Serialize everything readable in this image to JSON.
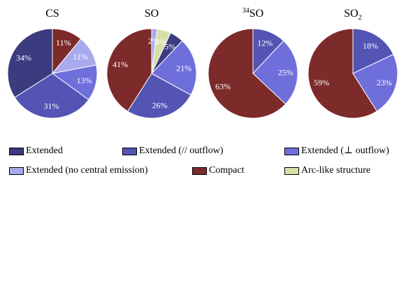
{
  "chart_data": [
    {
      "type": "pie",
      "title_main": "CS",
      "title_sup": "",
      "title_sub": "",
      "start_angle": 0,
      "slices": [
        {
          "category": "Compact",
          "value": 11,
          "label": "11%"
        },
        {
          "category": "Extended (no central emission)",
          "value": 11,
          "label": "11%"
        },
        {
          "category": "Extended (⊥ outflow)",
          "value": 13,
          "label": "13%"
        },
        {
          "category": "Extended (// outflow)",
          "value": 31,
          "label": "31%"
        },
        {
          "category": "Extended",
          "value": 34,
          "label": "34%"
        }
      ]
    },
    {
      "type": "pie",
      "title_main": "SO",
      "title_sup": "",
      "title_sub": "",
      "start_angle": 0,
      "slices": [
        {
          "category": "Extended (no central emission)",
          "value": 2,
          "label": "2%"
        },
        {
          "category": "Arc-like structure",
          "value": 5,
          "label": "5%"
        },
        {
          "category": "Extended",
          "value": 5,
          "label": "5%"
        },
        {
          "category": "Extended (⊥ outflow)",
          "value": 21,
          "label": "21%"
        },
        {
          "category": "Extended (// outflow)",
          "value": 26,
          "label": "26%"
        },
        {
          "category": "Compact",
          "value": 41,
          "label": "41%"
        }
      ]
    },
    {
      "type": "pie",
      "title_main": "SO",
      "title_sup": "34",
      "title_sub": "",
      "start_angle": 0,
      "slices": [
        {
          "category": "Extended (// outflow)",
          "value": 12,
          "label": "12%"
        },
        {
          "category": "Extended (⊥ outflow)",
          "value": 25,
          "label": "25%"
        },
        {
          "category": "Compact",
          "value": 63,
          "label": "63%"
        }
      ]
    },
    {
      "type": "pie",
      "title_main": "SO",
      "title_sup": "",
      "title_sub": "2",
      "start_angle": 0,
      "slices": [
        {
          "category": "Extended (// outflow)",
          "value": 18,
          "label": "18%"
        },
        {
          "category": "Extended (⊥ outflow)",
          "value": 23,
          "label": "23%"
        },
        {
          "category": "Compact",
          "value": 59,
          "label": "59%"
        }
      ]
    }
  ],
  "legend": [
    {
      "label": "Extended",
      "color": "#3b3b80"
    },
    {
      "label": "Extended (// outflow)",
      "color": "#5454b4"
    },
    {
      "label": "Extended (⊥ outflow)",
      "color": "#6f6fdc"
    },
    {
      "label": "Extended (no central emission)",
      "color": "#a9a9ee"
    },
    {
      "label": "Compact",
      "color": "#7d2a2a"
    },
    {
      "label": "Arc-like structure",
      "color": "#d6e0a6"
    }
  ],
  "colors": {
    "Extended": "#3b3b80",
    "Extended (// outflow)": "#5454b4",
    "Extended (⊥ outflow)": "#6f6fdc",
    "Extended (no central emission)": "#a9a9ee",
    "Compact": "#7d2a2a",
    "Arc-like structure": "#d6e0a6"
  }
}
